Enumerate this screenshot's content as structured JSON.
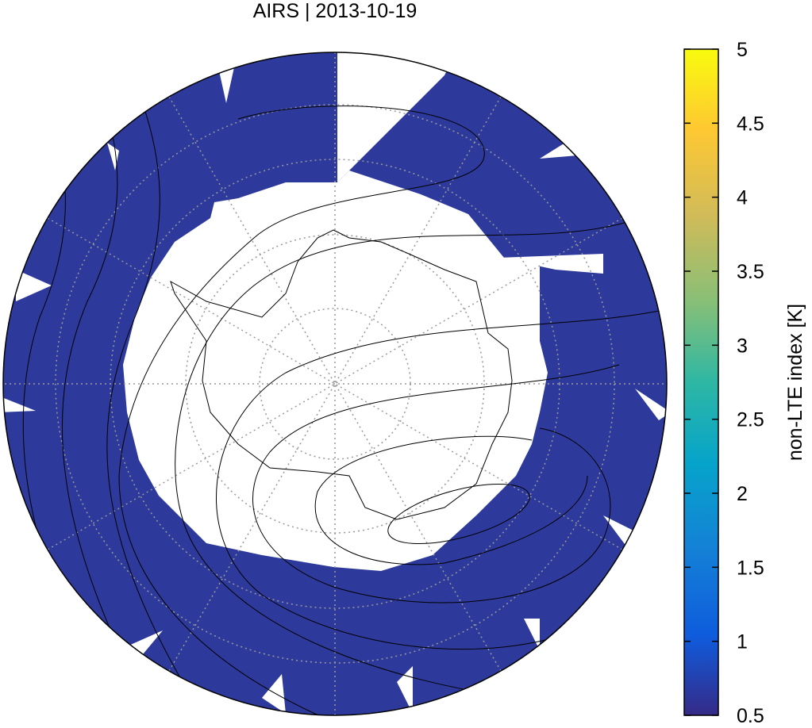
{
  "title": "AIRS | 2013-10-19",
  "colorbar": {
    "label": "non-LTE index [K]",
    "lim": [
      0.5,
      5
    ],
    "ticks": [
      0.5,
      1,
      1.5,
      2,
      2.5,
      3,
      3.5,
      4,
      4.5,
      5
    ]
  }
}
